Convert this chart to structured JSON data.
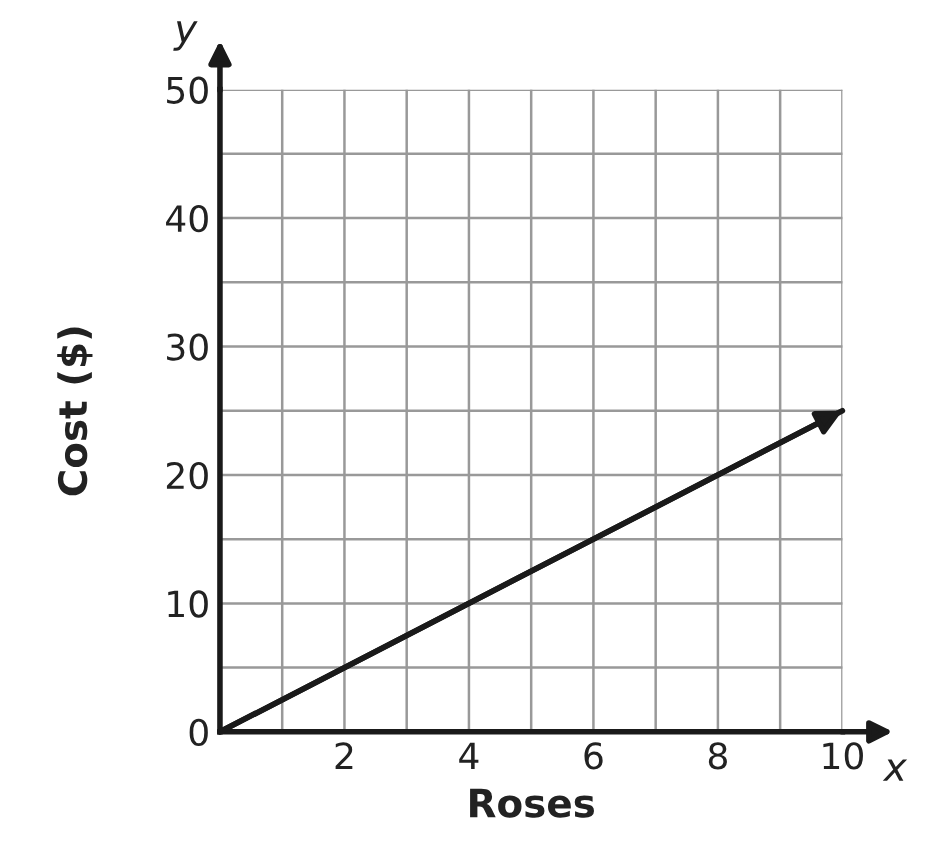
{
  "chart_data": {
    "type": "line",
    "xlabel": "Roses",
    "ylabel": "Cost ($)",
    "x": [
      0,
      10
    ],
    "series": [
      {
        "color": "#1a1a1a",
        "values": [
          0,
          25
        ]
      }
    ],
    "xlim": [
      0,
      10
    ],
    "ylim": [
      0,
      50
    ],
    "xticks": [
      {
        "value": 1,
        "label": null
      },
      2,
      {
        "value": 3,
        "label": null
      },
      4,
      {
        "value": 5,
        "label": null
      },
      6,
      {
        "value": 7,
        "label": null
      },
      8,
      {
        "value": 9,
        "label": null
      },
      10
    ],
    "yticks": [
      0,
      {
        "value": 5,
        "label": null
      },
      10,
      {
        "value": 15,
        "label": null
      },
      20,
      {
        "value": 25,
        "label": null
      },
      30,
      {
        "value": 35,
        "label": null
      },
      40,
      {
        "value": 45,
        "label": null
      },
      50
    ],
    "grid": true,
    "marker": "none",
    "line_style": "solid",
    "legend": false,
    "annotations": [
      "y",
      "x"
    ]
  }
}
